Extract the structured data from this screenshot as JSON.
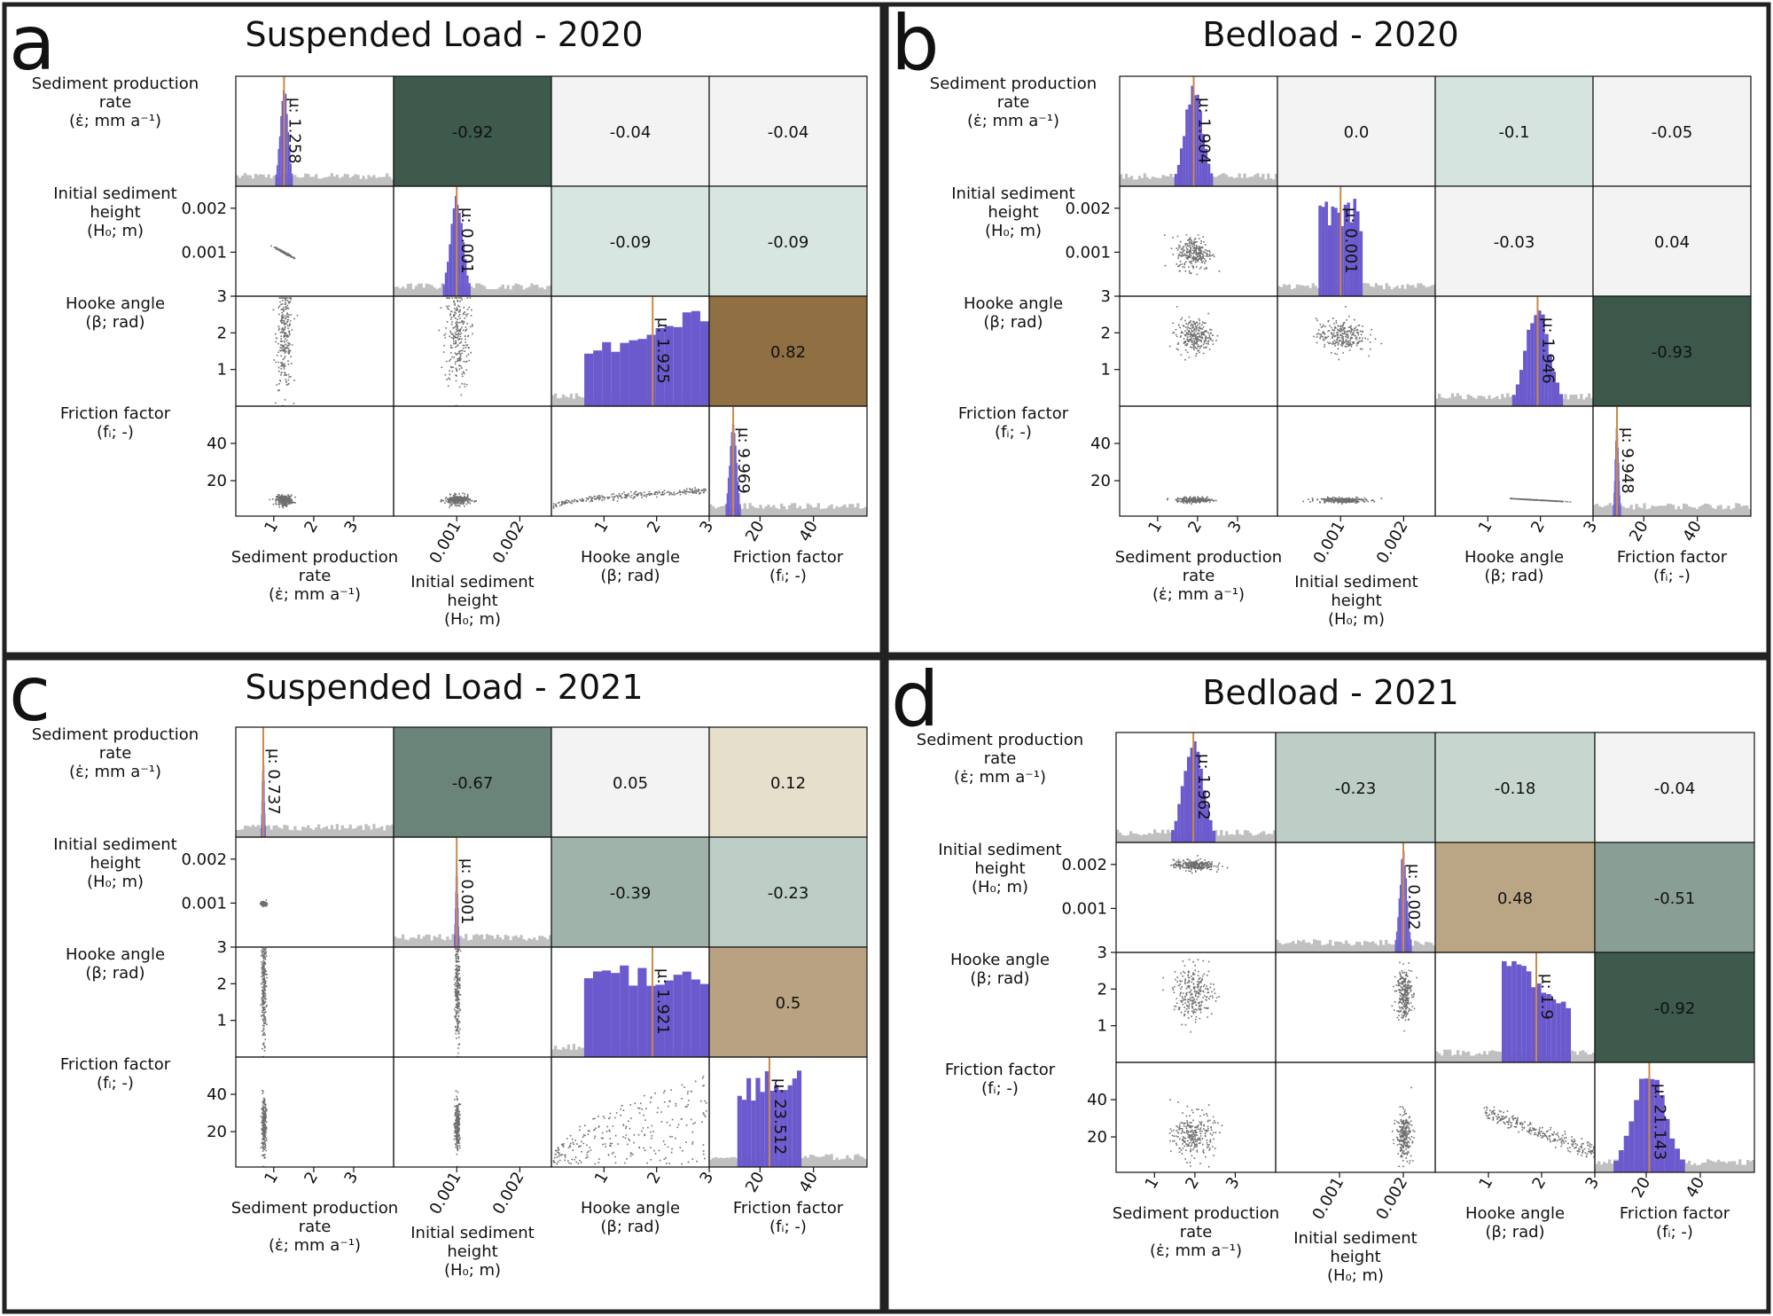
{
  "chart_data": [
    {
      "type": "pair_plot",
      "panel_letter": "a",
      "title": "Suspended Load - 2020",
      "variables": [
        {
          "line1": "Sediment production",
          "line2": "rate",
          "line3": "(ε̇; mm a⁻¹)"
        },
        {
          "line1": "Initial sediment",
          "line2": "height",
          "line3": "(H₀; m)"
        },
        {
          "line1": "Hooke angle",
          "line2": "(β; rad)",
          "line3": ""
        },
        {
          "line1": "Friction factor",
          "line2": "(fᵢ; -)",
          "line3": ""
        }
      ],
      "ranges": [
        [
          0.05,
          4.0
        ],
        [
          0.0,
          0.0025
        ],
        [
          0.0,
          3.0
        ],
        [
          1,
          60
        ]
      ],
      "ticks": [
        {
          "values": [
            1,
            2,
            3
          ],
          "labels": [
            "1",
            "2",
            "3"
          ]
        },
        {
          "values": [
            0.001,
            0.002
          ],
          "labels": [
            "0.001",
            "0.002"
          ]
        },
        {
          "values": [
            1,
            2,
            3
          ],
          "labels": [
            "1",
            "2",
            "3"
          ]
        },
        {
          "values": [
            20,
            40
          ],
          "labels": [
            "20",
            "40"
          ]
        }
      ],
      "means": [
        1.258,
        0.001,
        1.925,
        9.969
      ],
      "mean_labels": [
        "μ: 1.258",
        "μ: 0.001",
        "μ: 1.925",
        "μ: 9.969"
      ],
      "posterior_spread": [
        0.1,
        0.0001,
        1.3,
        1.3
      ],
      "posterior_hist_shape": [
        "normal",
        "normal",
        "rising",
        "normal"
      ],
      "correlations": [
        [
          "-0.92",
          "-0.04",
          "-0.04"
        ],
        [
          "-0.09",
          "-0.09"
        ],
        [
          "0.82"
        ]
      ],
      "scatter_pattern": {
        "0-1": "tight-line",
        "2-3": "curve",
        "1-3": "blob"
      }
    },
    {
      "type": "pair_plot",
      "panel_letter": "b",
      "title": "Bedload - 2020",
      "variables": [
        {
          "line1": "Sediment production",
          "line2": "rate",
          "line3": "(ε̇; mm a⁻¹)"
        },
        {
          "line1": "Initial sediment",
          "line2": "height",
          "line3": "(H₀; m)"
        },
        {
          "line1": "Hooke angle",
          "line2": "(β; rad)",
          "line3": ""
        },
        {
          "line1": "Friction factor",
          "line2": "(fᵢ; -)",
          "line3": ""
        }
      ],
      "ranges": [
        [
          0.05,
          4.0
        ],
        [
          0.0,
          0.0025
        ],
        [
          0.0,
          3.0
        ],
        [
          1,
          60
        ]
      ],
      "ticks": [
        {
          "values": [
            1,
            2,
            3
          ],
          "labels": [
            "1",
            "2",
            "3"
          ]
        },
        {
          "values": [
            0.001,
            0.002
          ],
          "labels": [
            "0.001",
            "0.002"
          ]
        },
        {
          "values": [
            1,
            2,
            3
          ],
          "labels": [
            "1",
            "2",
            "3"
          ]
        },
        {
          "values": [
            20,
            40
          ],
          "labels": [
            "20",
            "40"
          ]
        }
      ],
      "means": [
        1.904,
        0.001,
        1.946,
        9.948
      ],
      "mean_labels": [
        "μ: 1.904",
        "μ: 0.001",
        "μ: 1.946",
        "μ: 9.948"
      ],
      "posterior_spread": [
        0.22,
        0.00035,
        0.22,
        0.7
      ],
      "posterior_hist_shape": [
        "normal",
        "uniform",
        "normal",
        "normal"
      ],
      "correlations": [
        [
          "0.0",
          "-0.1",
          "-0.05"
        ],
        [
          "-0.03",
          "0.04"
        ],
        [
          "-0.93"
        ]
      ],
      "scatter_pattern": {
        "2-3": "tight-line"
      }
    },
    {
      "type": "pair_plot",
      "panel_letter": "c",
      "title": "Suspended Load - 2021",
      "variables": [
        {
          "line1": "Sediment production",
          "line2": "rate",
          "line3": "(ε̇; mm a⁻¹)"
        },
        {
          "line1": "Initial sediment",
          "line2": "height",
          "line3": "(H₀; m)"
        },
        {
          "line1": "Hooke angle",
          "line2": "(β; rad)",
          "line3": ""
        },
        {
          "line1": "Friction factor",
          "line2": "(fᵢ; -)",
          "line3": ""
        }
      ],
      "ranges": [
        [
          0.05,
          4.0
        ],
        [
          0.0,
          0.0025
        ],
        [
          0.0,
          3.0
        ],
        [
          1,
          60
        ]
      ],
      "ticks": [
        {
          "values": [
            1,
            2,
            3
          ],
          "labels": [
            "1",
            "2",
            "3"
          ]
        },
        {
          "values": [
            0.001,
            0.002
          ],
          "labels": [
            "0.001",
            "0.002"
          ]
        },
        {
          "values": [
            1,
            2,
            3
          ],
          "labels": [
            "1",
            "2",
            "3"
          ]
        },
        {
          "values": [
            20,
            40
          ],
          "labels": [
            "20",
            "40"
          ]
        }
      ],
      "means": [
        0.737,
        0.001,
        1.921,
        23.512
      ],
      "mean_labels": [
        "μ: 0.737",
        "μ: 0.001",
        "μ: 1.921",
        "μ: 23.512"
      ],
      "posterior_spread": [
        0.03,
        2e-05,
        1.3,
        12
      ],
      "posterior_hist_shape": [
        "normal",
        "normal",
        "uniform",
        "uniform"
      ],
      "correlations": [
        [
          "-0.67",
          "0.05",
          "0.12"
        ],
        [
          "-0.39",
          "-0.23"
        ],
        [
          "0.5"
        ]
      ],
      "scatter_pattern": {
        "2-3": "wedge"
      }
    },
    {
      "type": "pair_plot",
      "panel_letter": "d",
      "title": "Bedload - 2021",
      "variables": [
        {
          "line1": "Sediment production",
          "line2": "rate",
          "line3": "(ε̇; mm a⁻¹)"
        },
        {
          "line1": "Initial sediment",
          "line2": "height",
          "line3": "(H₀; m)"
        },
        {
          "line1": "Hooke angle",
          "line2": "(β; rad)",
          "line3": ""
        },
        {
          "line1": "Friction factor",
          "line2": "(fᵢ; -)",
          "line3": ""
        }
      ],
      "ranges": [
        [
          0.05,
          4.0
        ],
        [
          0.0,
          0.0025
        ],
        [
          0.0,
          3.0
        ],
        [
          1,
          60
        ]
      ],
      "ticks": [
        {
          "values": [
            1,
            2,
            3
          ],
          "labels": [
            "1",
            "2",
            "3"
          ]
        },
        {
          "values": [
            0.001,
            0.002
          ],
          "labels": [
            "0.001",
            "0.002"
          ]
        },
        {
          "values": [
            1,
            2,
            3
          ],
          "labels": [
            "1",
            "2",
            "3"
          ]
        },
        {
          "values": [
            20,
            40
          ],
          "labels": [
            "20",
            "40"
          ]
        }
      ],
      "means": [
        1.962,
        0.002,
        1.9,
        21.143
      ],
      "mean_labels": [
        "μ: 1.962",
        "μ: 0.002",
        "μ: 1.9",
        "μ: 21.143"
      ],
      "posterior_spread": [
        0.25,
        6e-05,
        0.65,
        6
      ],
      "posterior_hist_shape": [
        "normal",
        "normal",
        "falling",
        "normal"
      ],
      "correlations": [
        [
          "-0.23",
          "-0.18",
          "-0.04"
        ],
        [
          "0.48",
          "-0.51"
        ],
        [
          "-0.92"
        ]
      ],
      "scatter_pattern": {
        "2-3": "curve-down"
      }
    }
  ],
  "colors": {
    "posterior": "#6a5acd",
    "prior": "#c0c0c0",
    "mean_line": "#c98a4b",
    "scatter": "#6e6e6e",
    "border": "#222222"
  }
}
